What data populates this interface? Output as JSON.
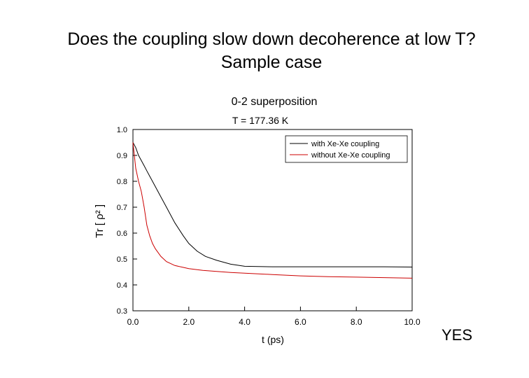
{
  "slide": {
    "title_line1": "Does the coupling slow down decoherence at low T?",
    "title_line2": "Sample case",
    "answer": "YES"
  },
  "chart_data": {
    "type": "line",
    "title": "0-2 superposition",
    "subtitle": "T = 177.36 K",
    "xlabel": "t (ps)",
    "ylabel": "Tr [ ρ² ]",
    "xlim": [
      0,
      10
    ],
    "ylim": [
      0.3,
      1.0
    ],
    "xticks": [
      "0.0",
      "2.0",
      "4.0",
      "6.0",
      "8.0",
      "10.0"
    ],
    "yticks": [
      "0.3",
      "0.4",
      "0.5",
      "0.6",
      "0.7",
      "0.8",
      "0.9",
      "1.0"
    ],
    "grid": false,
    "legend_position": "top-right",
    "series": [
      {
        "name": "with Xe-Xe coupling",
        "color": "#000000",
        "x": [
          0,
          0.1,
          0.2,
          0.3,
          0.4,
          0.5,
          0.6,
          0.8,
          1.0,
          1.2,
          1.5,
          1.8,
          2.0,
          2.3,
          2.6,
          3.0,
          3.5,
          4.0,
          5.0,
          6.0,
          7.0,
          8.0,
          9.0,
          10.0
        ],
        "y": [
          0.95,
          0.93,
          0.9,
          0.88,
          0.86,
          0.84,
          0.82,
          0.78,
          0.74,
          0.7,
          0.64,
          0.59,
          0.56,
          0.53,
          0.51,
          0.495,
          0.48,
          0.472,
          0.47,
          0.47,
          0.47,
          0.47,
          0.47,
          0.469
        ]
      },
      {
        "name": "without Xe-Xe coupling",
        "color": "#cc0000",
        "x": [
          0,
          0.1,
          0.2,
          0.3,
          0.4,
          0.5,
          0.6,
          0.7,
          0.8,
          1.0,
          1.2,
          1.5,
          2.0,
          2.5,
          3.0,
          3.5,
          4.0,
          5.0,
          6.0,
          7.0,
          8.0,
          9.0,
          10.0
        ],
        "y": [
          0.95,
          0.85,
          0.8,
          0.76,
          0.7,
          0.63,
          0.59,
          0.56,
          0.54,
          0.51,
          0.49,
          0.475,
          0.463,
          0.456,
          0.452,
          0.448,
          0.445,
          0.44,
          0.435,
          0.432,
          0.43,
          0.428,
          0.426
        ]
      }
    ]
  }
}
